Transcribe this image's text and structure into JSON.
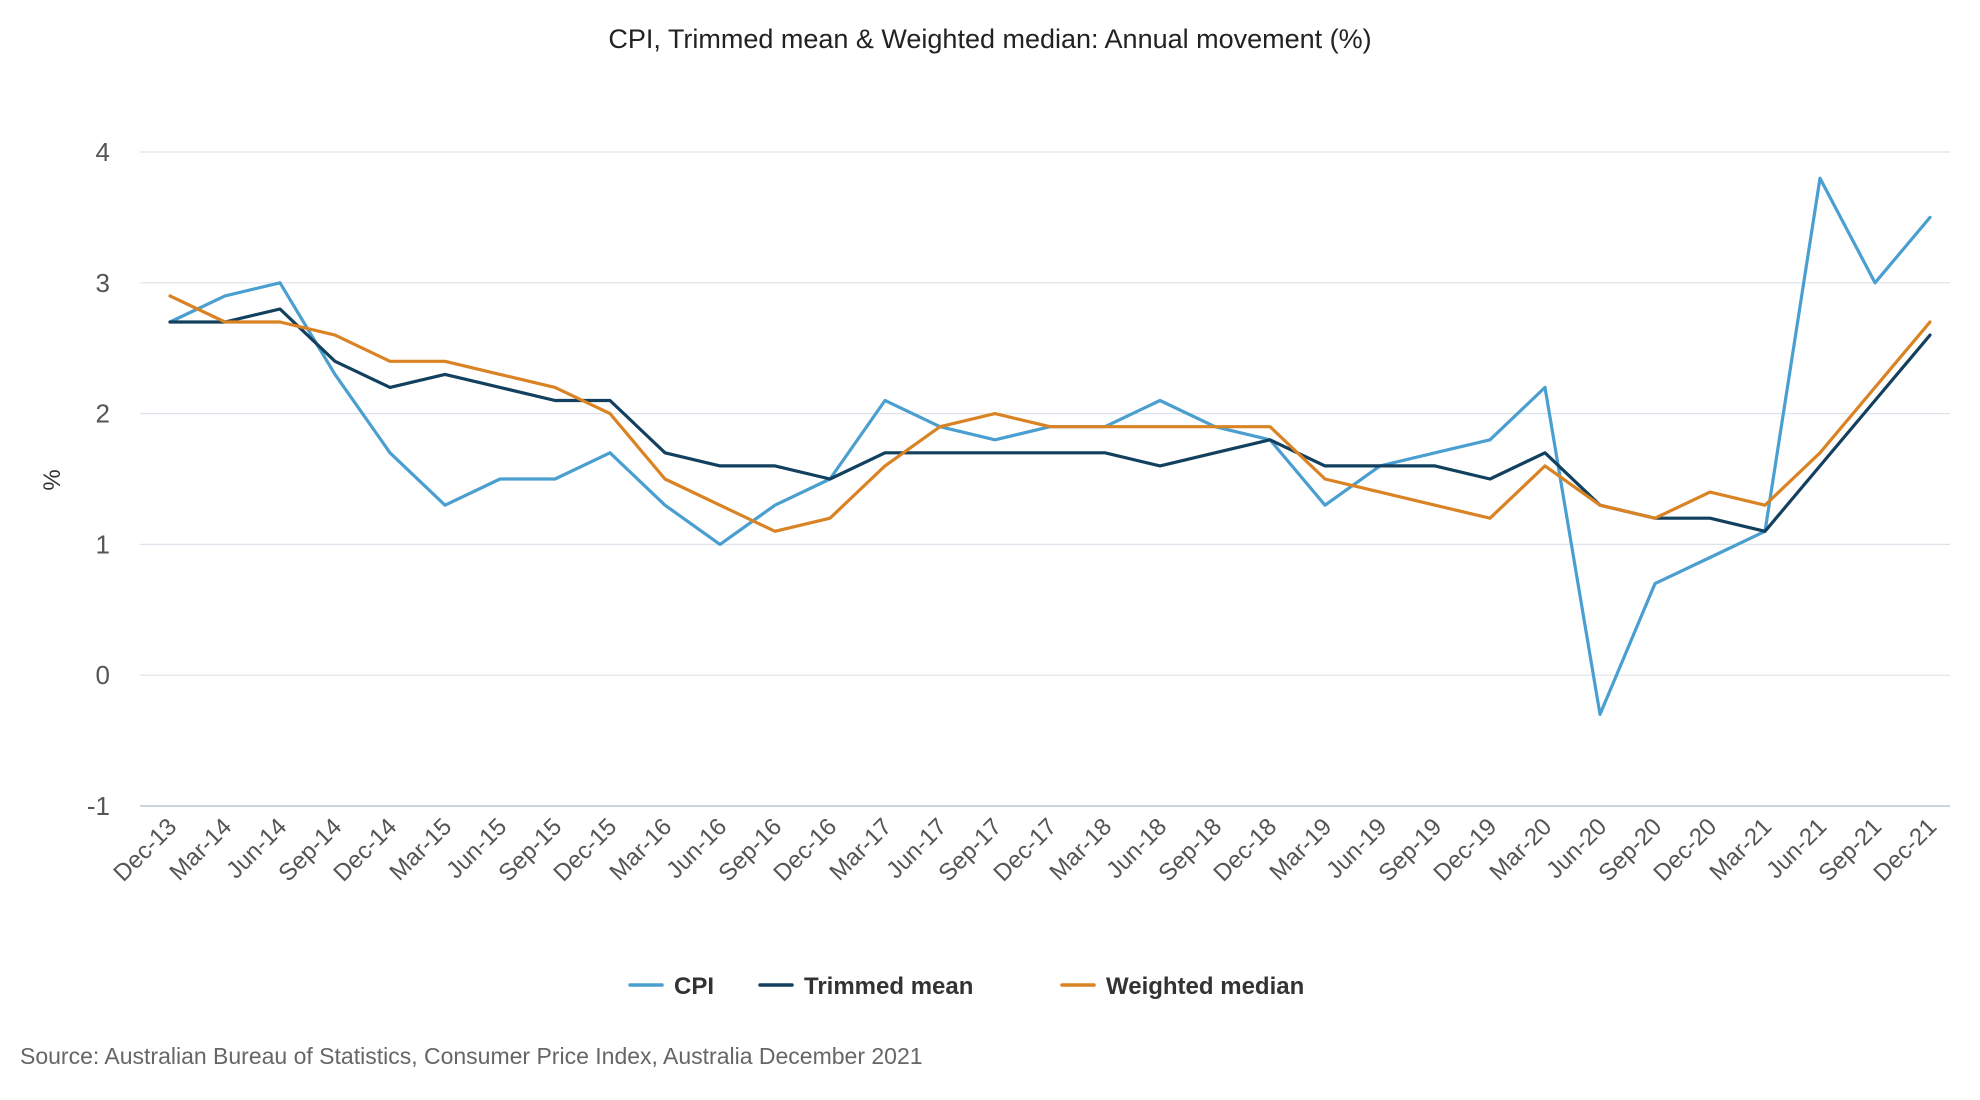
{
  "chart_data": {
    "type": "line",
    "title": "CPI, Trimmed mean & Weighted median: Annual movement (%)",
    "xlabel": "",
    "ylabel": "%",
    "ylim": [
      -1,
      4
    ],
    "yticks": [
      "4",
      "3",
      "2",
      "1",
      "0",
      "-1"
    ],
    "ytick_values": [
      4,
      3,
      2,
      1,
      0,
      -1
    ],
    "grid": true,
    "legend_position": "bottom",
    "categories": [
      "Dec-13",
      "Mar-14",
      "Jun-14",
      "Sep-14",
      "Dec-14",
      "Mar-15",
      "Jun-15",
      "Sep-15",
      "Dec-15",
      "Mar-16",
      "Jun-16",
      "Sep-16",
      "Dec-16",
      "Mar-17",
      "Jun-17",
      "Sep-17",
      "Dec-17",
      "Mar-18",
      "Jun-18",
      "Sep-18",
      "Dec-18",
      "Mar-19",
      "Jun-19",
      "Sep-19",
      "Dec-19",
      "Mar-20",
      "Jun-20",
      "Sep-20",
      "Dec-20",
      "Mar-21",
      "Jun-21",
      "Sep-21",
      "Dec-21"
    ],
    "series": [
      {
        "name": "CPI",
        "color": "#4a9fd0",
        "values": [
          2.7,
          2.9,
          3.0,
          2.3,
          1.7,
          1.3,
          1.5,
          1.5,
          1.7,
          1.3,
          1.0,
          1.3,
          1.5,
          2.1,
          1.9,
          1.8,
          1.9,
          1.9,
          2.1,
          1.9,
          1.8,
          1.3,
          1.6,
          1.7,
          1.8,
          2.2,
          -0.3,
          0.7,
          0.9,
          1.1,
          3.8,
          3.0,
          3.5
        ]
      },
      {
        "name": "Trimmed mean",
        "color": "#12405e",
        "values": [
          2.7,
          2.7,
          2.8,
          2.4,
          2.2,
          2.3,
          2.2,
          2.1,
          2.1,
          1.7,
          1.6,
          1.6,
          1.5,
          1.7,
          1.7,
          1.7,
          1.7,
          1.7,
          1.6,
          1.7,
          1.8,
          1.6,
          1.6,
          1.6,
          1.5,
          1.7,
          1.3,
          1.2,
          1.2,
          1.1,
          1.6,
          2.1,
          2.6
        ]
      },
      {
        "name": "Weighted median",
        "color": "#d98324",
        "values": [
          2.9,
          2.7,
          2.7,
          2.6,
          2.4,
          2.4,
          2.3,
          2.2,
          2.0,
          1.5,
          1.3,
          1.1,
          1.2,
          1.6,
          1.9,
          2.0,
          1.9,
          1.9,
          1.9,
          1.9,
          1.9,
          1.5,
          1.4,
          1.3,
          1.2,
          1.6,
          1.3,
          1.2,
          1.4,
          1.3,
          1.7,
          2.2,
          2.7
        ]
      }
    ]
  },
  "source": "Source: Australian Bureau of Statistics, Consumer Price Index, Australia December 2021",
  "colors": {
    "grid": "#dde3ea",
    "axis": "#b8c8d8"
  }
}
